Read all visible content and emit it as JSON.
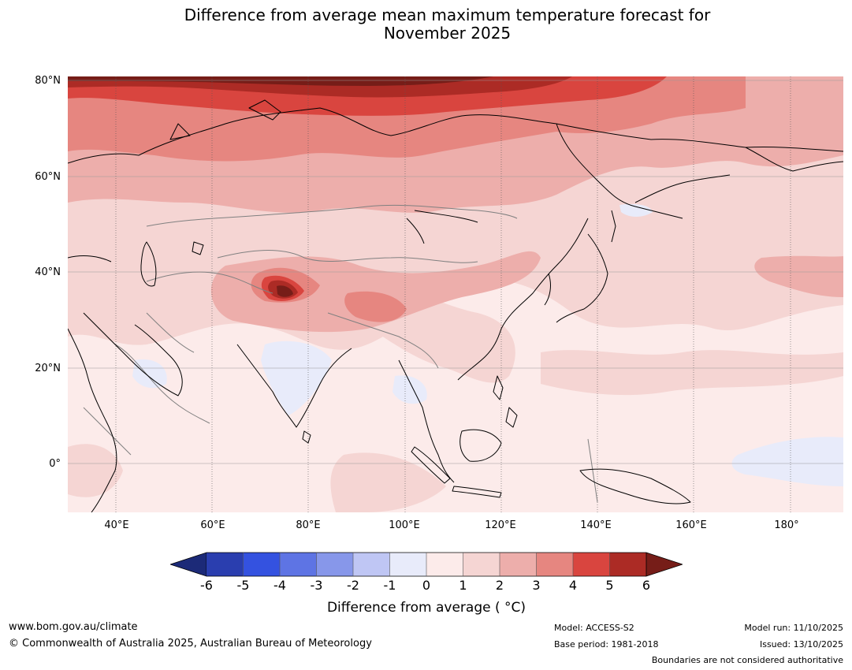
{
  "title": {
    "line1": "Difference from average mean maximum temperature forecast for",
    "line2": "November 2025"
  },
  "map": {
    "lat_labels": [
      "80°N",
      "60°N",
      "40°N",
      "20°N",
      "0°"
    ],
    "lon_labels": [
      "40°E",
      "60°E",
      "80°E",
      "100°E",
      "120°E",
      "140°E",
      "160°E",
      "180°"
    ],
    "lon_range": [
      30,
      191
    ],
    "lat_range": [
      -10,
      81
    ],
    "anomaly_colors": {
      "le_m6": "#1c2a78",
      "m6_m5": "#2a3eaf",
      "m5_m4": "#3452e0",
      "m4_m3": "#5e74e4",
      "m3_m2": "#8797ea",
      "m2_m1": "#bfc6f4",
      "m1_0": "#e8ebfa",
      "0_1": "#fcebea",
      "1_2": "#f5d5d3",
      "2_3": "#edaeab",
      "3_4": "#e68680",
      "4_5": "#d9453f",
      "5_6": "#ac2b25",
      "ge_6": "#761d18"
    }
  },
  "colorbar": {
    "ticks": [
      "-6",
      "-5",
      "-4",
      "-3",
      "-2",
      "-1",
      "0",
      "1",
      "2",
      "3",
      "4",
      "5",
      "6"
    ],
    "label": "Difference from average ( °C)"
  },
  "footer": {
    "website": "www.bom.gov.au/climate",
    "copyright": "© Commonwealth of Australia 2025, Australian Bureau of Meteorology",
    "model": "Model: ACCESS-S2",
    "base_period": "Base period: 1981-2018",
    "model_run": "Model run: 11/10/2025",
    "issued": "Issued: 13/10/2025",
    "disclaimer": "Boundaries are not considered authoritative"
  }
}
